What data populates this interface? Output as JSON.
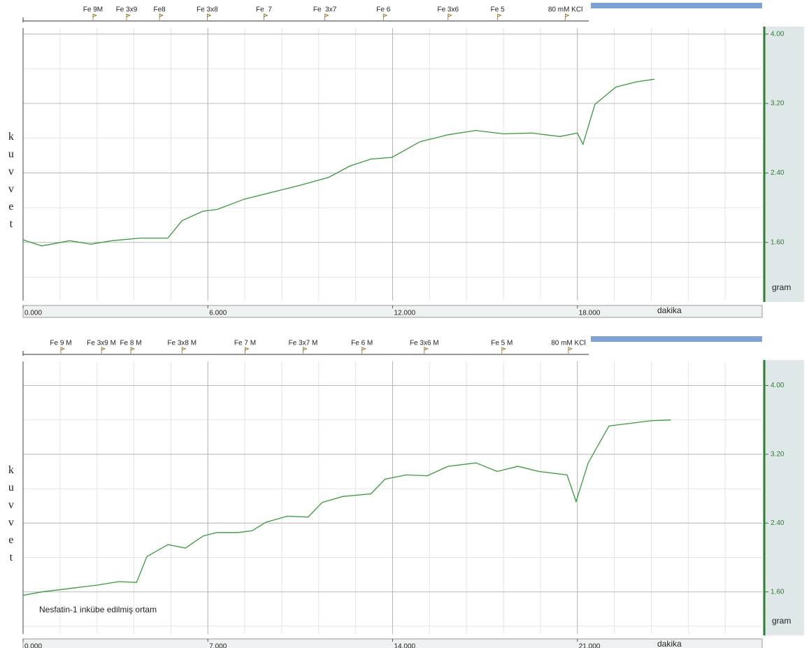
{
  "chart_data": [
    {
      "type": "line",
      "y_label": "kuvvet",
      "y_unit": "gram",
      "x_label": "dakika",
      "color": "#3a9a3a",
      "grid": true,
      "xlim": [
        0,
        24
      ],
      "xticks": [
        {
          "value": 0,
          "label": "0.000"
        },
        {
          "value": 6,
          "label": "6.000"
        },
        {
          "value": 12,
          "label": "12.000"
        },
        {
          "value": 18,
          "label": "18.000"
        }
      ],
      "ylim": [
        0.93,
        4.07
      ],
      "yticks": [
        {
          "value": 4,
          "label": "4.00"
        },
        {
          "value": 3.2,
          "label": "3.20"
        },
        {
          "value": 2.4,
          "label": "2.40"
        },
        {
          "value": 1.6,
          "label": "1.60"
        }
      ],
      "events": [
        {
          "label": "Fe 9M",
          "x": 2.27
        },
        {
          "label": "Fe 3x9",
          "x": 3.36
        },
        {
          "label": "Fe8",
          "x": 4.43
        },
        {
          "label": "Fe 3x8",
          "x": 5.98
        },
        {
          "label": "Fe  7",
          "x": 7.82
        },
        {
          "label": "Fe  3x7",
          "x": 9.8
        },
        {
          "label": "Fe 6",
          "x": 11.7
        },
        {
          "label": "Fe 3x6",
          "x": 13.8
        },
        {
          "label": "Fe 5",
          "x": 15.41
        },
        {
          "label": "80 mM KCl",
          "x": 17.61
        }
      ],
      "x": [
        0,
        0.61,
        1.52,
        2.2,
        2.89,
        3.8,
        4.7,
        5.16,
        5.84,
        6.3,
        7.2,
        8.34,
        9.02,
        9.93,
        10.61,
        11.3,
        11.98,
        12.89,
        13.8,
        14.7,
        15.61,
        16.52,
        17.43,
        18.0,
        18.18,
        18.57,
        19.25,
        19.93,
        20.5
      ],
      "values": [
        1.63,
        1.56,
        1.62,
        1.58,
        1.62,
        1.65,
        1.65,
        1.85,
        1.96,
        1.98,
        2.1,
        2.2,
        2.26,
        2.35,
        2.48,
        2.56,
        2.58,
        2.76,
        2.84,
        2.89,
        2.85,
        2.86,
        2.82,
        2.86,
        2.73,
        3.19,
        3.39,
        3.45,
        3.48
      ]
    },
    {
      "type": "line",
      "y_label": "kuvvet",
      "y_unit": "gram",
      "x_label": "dakika",
      "color": "#3a9a3a",
      "grid": true,
      "annotation": "Nesfatin-1 inkübe edilmiş ortam",
      "xlim": [
        0,
        28
      ],
      "xticks": [
        {
          "value": 0,
          "label": "0.000"
        },
        {
          "value": 7,
          "label": "7.000"
        },
        {
          "value": 14,
          "label": "14.000"
        },
        {
          "value": 21,
          "label": "21.000"
        }
      ],
      "ylim": [
        1.11,
        4.28
      ],
      "yticks": [
        {
          "value": 4,
          "label": "4.00"
        },
        {
          "value": 3.2,
          "label": "3.20"
        },
        {
          "value": 2.4,
          "label": "2.40"
        },
        {
          "value": 1.6,
          "label": "1.60"
        }
      ],
      "events": [
        {
          "label": "Fe 9 M",
          "x": 1.43
        },
        {
          "label": "Fe 3x9 M",
          "x": 2.97
        },
        {
          "label": "Fe 8 M",
          "x": 4.08
        },
        {
          "label": "Fe 3x8 M",
          "x": 6.02
        },
        {
          "label": "Fe 7 M",
          "x": 8.41
        },
        {
          "label": "Fe 3x7 M",
          "x": 10.61
        },
        {
          "label": "Fe 6 M",
          "x": 12.84
        },
        {
          "label": "Fe 3x6 M",
          "x": 15.2
        },
        {
          "label": "Fe 5 M",
          "x": 18.14
        },
        {
          "label": "80 mM KCl",
          "x": 20.66
        }
      ],
      "x": [
        0,
        0.72,
        1.78,
        2.84,
        3.63,
        4.3,
        4.69,
        5.49,
        6.15,
        6.82,
        7.35,
        8.14,
        8.67,
        9.2,
        10.0,
        10.8,
        11.33,
        12.12,
        13.18,
        13.71,
        14.51,
        15.31,
        16.1,
        17.16,
        17.96,
        18.75,
        19.55,
        20.61,
        20.95,
        21.41,
        22.2,
        23.0,
        23.79,
        24.54
      ],
      "values": [
        1.56,
        1.6,
        1.64,
        1.68,
        1.72,
        1.71,
        2.01,
        2.15,
        2.11,
        2.25,
        2.29,
        2.29,
        2.31,
        2.41,
        2.48,
        2.47,
        2.64,
        2.71,
        2.74,
        2.91,
        2.96,
        2.95,
        3.06,
        3.1,
        3.0,
        3.06,
        3.0,
        2.96,
        2.65,
        3.1,
        3.53,
        3.56,
        3.59,
        3.6
      ]
    }
  ]
}
